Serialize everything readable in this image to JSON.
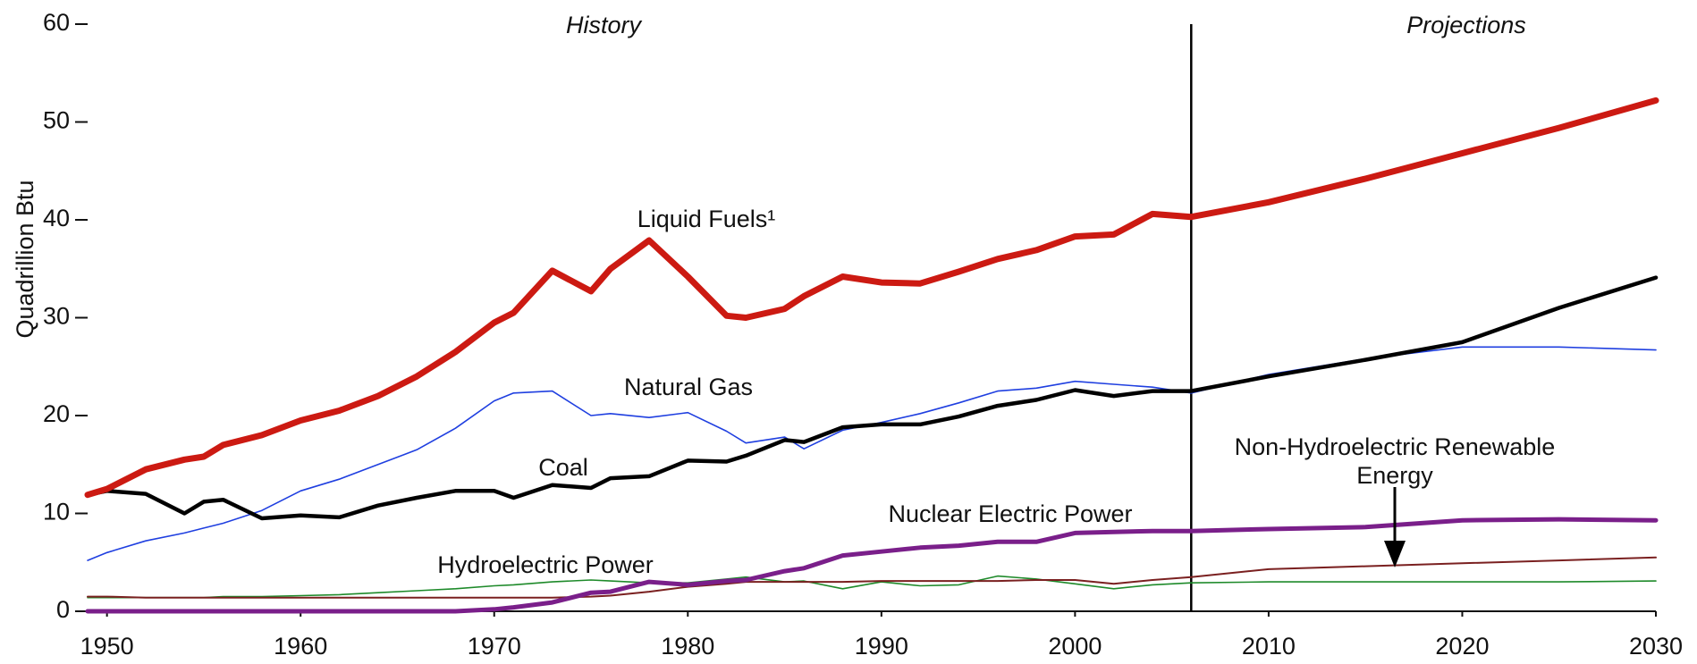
{
  "chart_data": {
    "type": "line",
    "y_axis_label": "Quadrillion Btu",
    "annotations": [
      "History",
      "Projections"
    ],
    "divider": 2006,
    "xlim": [
      1949,
      2030
    ],
    "ylim": [
      0,
      60
    ],
    "xticks": [
      1950,
      1960,
      1970,
      1980,
      1990,
      2000,
      2010,
      2020,
      2030
    ],
    "yticks": [
      0,
      10,
      20,
      30,
      40,
      50,
      60
    ],
    "x": [
      1949,
      1950,
      1952,
      1954,
      1955,
      1956,
      1958,
      1960,
      1962,
      1964,
      1966,
      1968,
      1970,
      1971,
      1973,
      1975,
      1976,
      1978,
      1980,
      1982,
      1983,
      1985,
      1986,
      1988,
      1990,
      1992,
      1994,
      1996,
      1998,
      2000,
      2002,
      2004,
      2006,
      2010,
      2015,
      2020,
      2025,
      2030
    ],
    "series": [
      {
        "name": "Liquid Fuels¹",
        "color": "#cc1a12",
        "width": 7,
        "values": [
          11.9,
          12.5,
          14.5,
          15.5,
          15.8,
          17,
          18,
          19.5,
          20.5,
          22,
          24,
          26.5,
          29.5,
          30.5,
          34.8,
          32.7,
          35,
          37.9,
          34.2,
          30.2,
          30,
          30.9,
          32.2,
          34.2,
          33.6,
          33.5,
          34.7,
          36,
          36.9,
          38.3,
          38.5,
          40.6,
          40.3,
          41.8,
          44.2,
          46.8,
          49.4,
          52.2
        ]
      },
      {
        "name": "Natural Gas",
        "color": "#1f3fe0",
        "width": 1.6,
        "values": [
          5.2,
          6,
          7.2,
          8,
          8.5,
          9,
          10.3,
          12.3,
          13.5,
          15,
          16.5,
          18.7,
          21.5,
          22.3,
          22.5,
          20,
          20.2,
          19.8,
          20.3,
          18.4,
          17.2,
          17.8,
          16.6,
          18.5,
          19.3,
          20.2,
          21.3,
          22.5,
          22.8,
          23.5,
          23.2,
          22.9,
          22.3,
          24.2,
          25.8,
          27,
          27,
          26.7
        ]
      },
      {
        "name": "Coal",
        "color": "#000000",
        "width": 4.5,
        "values": [
          11.9,
          12.3,
          12,
          10,
          11.2,
          11.4,
          9.5,
          9.8,
          9.6,
          10.8,
          11.6,
          12.3,
          12.3,
          11.6,
          12.9,
          12.6,
          13.6,
          13.8,
          15.4,
          15.3,
          15.9,
          17.5,
          17.3,
          18.8,
          19.1,
          19.1,
          19.9,
          21,
          21.6,
          22.6,
          22,
          22.5,
          22.5,
          24,
          25.7,
          27.5,
          31,
          34.1
        ]
      },
      {
        "name": "Nuclear Electric Power",
        "color": "#7a1f8a",
        "width": 5,
        "values": [
          0,
          0,
          0,
          0,
          0,
          0,
          0,
          0,
          0,
          0,
          0,
          0,
          0.2,
          0.4,
          0.9,
          1.9,
          2,
          3,
          2.7,
          3.1,
          3.2,
          4.1,
          4.4,
          5.7,
          6.1,
          6.5,
          6.7,
          7.1,
          7.1,
          8,
          8.1,
          8.2,
          8.2,
          8.4,
          8.6,
          9.3,
          9.4,
          9.3
        ]
      },
      {
        "name": "Hydroelectric Power",
        "color": "#1e8a2a",
        "width": 1.6,
        "values": [
          1.4,
          1.4,
          1.4,
          1.4,
          1.4,
          1.5,
          1.5,
          1.6,
          1.7,
          1.9,
          2.1,
          2.3,
          2.6,
          2.7,
          3,
          3.2,
          3.1,
          2.9,
          2.9,
          3.3,
          3.5,
          3,
          3.1,
          2.3,
          3,
          2.6,
          2.7,
          3.6,
          3.3,
          2.8,
          2.3,
          2.7,
          2.9,
          3,
          3,
          3,
          3,
          3.1
        ]
      },
      {
        "name": "Non-Hydroelectric Renewable Energy",
        "color": "#7a2020",
        "width": 2,
        "values": [
          1.5,
          1.5,
          1.4,
          1.4,
          1.4,
          1.4,
          1.4,
          1.4,
          1.4,
          1.4,
          1.4,
          1.4,
          1.4,
          1.4,
          1.4,
          1.5,
          1.6,
          2,
          2.5,
          2.8,
          3,
          3,
          3,
          3,
          3.1,
          3.1,
          3.1,
          3.1,
          3.2,
          3.2,
          2.8,
          3.2,
          3.5,
          4.3,
          4.6,
          4.9,
          5.2,
          5.5
        ]
      }
    ]
  }
}
